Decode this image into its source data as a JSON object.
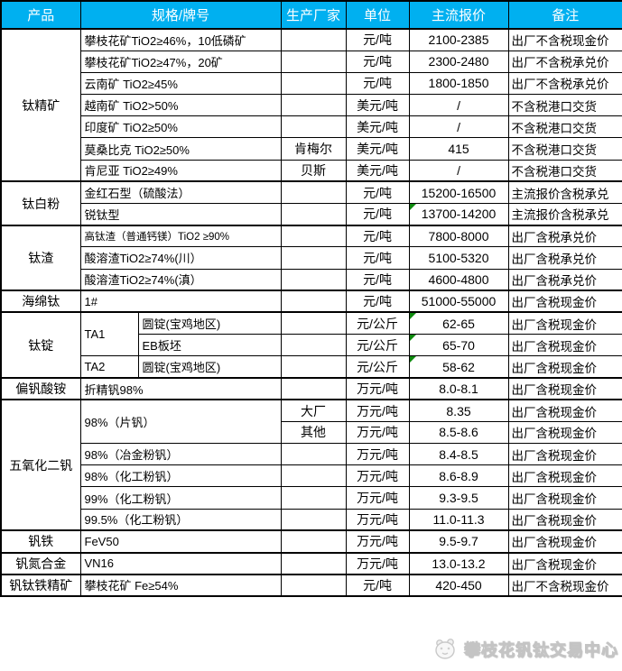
{
  "chart_data": {
    "type": "table",
    "columns": [
      "产品",
      "规格/牌号",
      "生产厂家",
      "单位",
      "主流报价",
      "备注"
    ],
    "groups": [
      {
        "product": "钛精矿",
        "rows": [
          {
            "spec": "攀枝花矿TiO2≥46%，10低磷矿",
            "maker": "",
            "unit": "元/吨",
            "price": "2100-2385",
            "note": "出厂不含税现金价"
          },
          {
            "spec": "攀枝花矿TiO2≥47%，20矿",
            "maker": "",
            "unit": "元/吨",
            "price": "2300-2480",
            "note": "出厂不含税承兑价"
          },
          {
            "spec": "云南矿 TiO2≥45%",
            "maker": "",
            "unit": "元/吨",
            "price": "1800-1850",
            "note": "出厂不含税承兑价"
          },
          {
            "spec": "越南矿 TiO2>50%",
            "maker": "",
            "unit": "美元/吨",
            "price": "/",
            "note": "不含税港口交货"
          },
          {
            "spec": "印度矿 TiO2≥50%",
            "maker": "",
            "unit": "美元/吨",
            "price": "/",
            "note": "不含税港口交货"
          },
          {
            "spec": "莫桑比克 TiO2≥50%",
            "maker": "肯梅尔",
            "unit": "美元/吨",
            "price": "415",
            "note": "不含税港口交货"
          },
          {
            "spec": "肯尼亚 TiO2≥49%",
            "maker": "贝斯",
            "unit": "美元/吨",
            "price": "/",
            "note": "不含税港口交货"
          }
        ]
      },
      {
        "product": "钛白粉",
        "rows": [
          {
            "spec": "金红石型（硫酸法）",
            "maker": "",
            "unit": "元/吨",
            "price": "15200-16500",
            "note": "主流报价含税承兑"
          },
          {
            "spec": "锐钛型",
            "maker": "",
            "unit": "元/吨",
            "price": "13700-14200",
            "price_flag": true,
            "note": "主流报价含税承兑"
          }
        ]
      },
      {
        "product": "钛渣",
        "rows": [
          {
            "spec": "高钛渣（普通钙镁）TiO2 ≥90%",
            "spec_small": true,
            "maker": "",
            "unit": "元/吨",
            "price": "7800-8000",
            "note": "出厂含税承兑价"
          },
          {
            "spec": "酸溶渣TiO2≥74%(川）",
            "maker": "",
            "unit": "元/吨",
            "price": "5100-5320",
            "note": "出厂含税承兑价"
          },
          {
            "spec": "酸溶渣TiO2≥74%(滇）",
            "maker": "",
            "unit": "元/吨",
            "price": "4600-4800",
            "note": "出厂含税承兑价"
          }
        ]
      },
      {
        "product": "海绵钛",
        "rows": [
          {
            "spec": "1#",
            "maker": "",
            "unit": "元/吨",
            "price": "51000-55000",
            "note": "出厂含税现金价"
          }
        ]
      },
      {
        "product": "钛锭",
        "rows": [
          {
            "spec": "TA1",
            "spec_rowspan": 2,
            "spec2": "圆锭(宝鸡地区)",
            "maker": "",
            "unit": "元/公斤",
            "price": "62-65",
            "price_flag": true,
            "note": "出厂含税现金价"
          },
          {
            "spec2": "EB板坯",
            "maker": "",
            "unit": "元/公斤",
            "price": "65-70",
            "price_flag": true,
            "note": "出厂含税现金价"
          },
          {
            "spec": "TA2",
            "spec2": "圆锭(宝鸡地区)",
            "maker": "",
            "unit": "元/公斤",
            "price": "58-62",
            "price_flag": true,
            "note": "出厂含税现金价"
          }
        ]
      },
      {
        "product": "偏钒酸铵",
        "rows": [
          {
            "spec": "折精钒98%",
            "maker": "",
            "unit": "万元/吨",
            "price": "8.0-8.1",
            "note": "出厂含税现金价"
          }
        ]
      },
      {
        "product": "五氧化二钒",
        "rows": [
          {
            "spec": "98%（片钒）",
            "spec_rowspan": 2,
            "spec_colspan": 2,
            "maker": "大厂",
            "unit": "万元/吨",
            "price": "8.35",
            "note": "出厂含税现金价"
          },
          {
            "maker": "其他",
            "unit": "万元/吨",
            "price": "8.5-8.6",
            "note": "出厂含税现金价"
          },
          {
            "spec": "98%（冶金粉钒）",
            "maker": "",
            "unit": "万元/吨",
            "price": "8.4-8.5",
            "note": "出厂含税现金价"
          },
          {
            "spec": "98%（化工粉钒）",
            "maker": "",
            "unit": "万元/吨",
            "price": "8.6-8.9",
            "note": "出厂含税现金价"
          },
          {
            "spec": "99%（化工粉钒）",
            "maker": "",
            "unit": "万元/吨",
            "price": "9.3-9.5",
            "note": "出厂含税现金价"
          },
          {
            "spec": "99.5%（化工粉钒）",
            "maker": "",
            "unit": "万元/吨",
            "price": "11.0-11.3",
            "note": "出厂含税现金价"
          }
        ]
      },
      {
        "product": "钒铁",
        "rows": [
          {
            "spec": "FeV50",
            "maker": "",
            "unit": "万元/吨",
            "price": "9.5-9.7",
            "note": "出厂含税现金价"
          }
        ]
      },
      {
        "product": "钒氮合金",
        "rows": [
          {
            "spec": "VN16",
            "maker": "",
            "unit": "万元/吨",
            "price": "13.0-13.2",
            "note": "出厂含税现金价"
          }
        ]
      },
      {
        "product": "钒钛铁精矿",
        "rows": [
          {
            "spec": "攀枝花矿 Fe≥54%",
            "maker": "",
            "unit": "元/吨",
            "price": "420-450",
            "note": "出厂不含税现金价"
          }
        ]
      }
    ]
  },
  "watermark": {
    "logo_icon": "panda-exchange-logo",
    "text": "攀枝花钒钛交易中心"
  },
  "colors": {
    "header_bg": "#00B0F0",
    "header_text": "#FFFFFF",
    "border": "#000000",
    "flag_green": "#0E8A0E",
    "watermark_gray": "#D8D8D8"
  }
}
